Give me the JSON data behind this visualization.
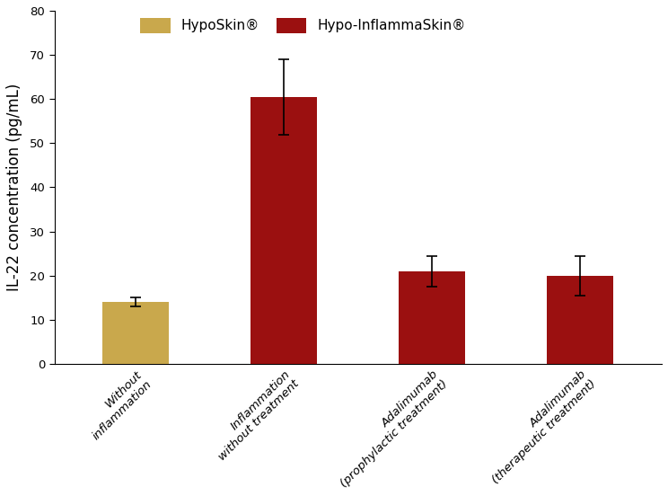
{
  "categories": [
    "Without\ninflammation",
    "Inflammation\nwithout treatment",
    "Adalimumab\n(prophylactic treatment)",
    "Adalimumab\n(therapeutic treatment)"
  ],
  "values": [
    14.0,
    60.5,
    21.0,
    20.0
  ],
  "errors": [
    1.0,
    8.5,
    3.5,
    4.5
  ],
  "bar_colors": [
    "#C9A84C",
    "#9B1010",
    "#9B1010",
    "#9B1010"
  ],
  "ylabel": "IL-22 concentration (pg/mL)",
  "ylim": [
    0,
    80
  ],
  "yticks": [
    0,
    10,
    20,
    30,
    40,
    50,
    60,
    70,
    80
  ],
  "legend_labels": [
    "HypoSkin®",
    "Hypo-InflammaSkin®"
  ],
  "legend_colors": [
    "#C9A84C",
    "#9B1010"
  ],
  "background_color": "#ffffff",
  "bar_width": 0.45,
  "figsize": [
    7.44,
    5.52
  ],
  "dpi": 100,
  "tick_label_fontsize": 9.5,
  "ylabel_fontsize": 12,
  "legend_fontsize": 11
}
